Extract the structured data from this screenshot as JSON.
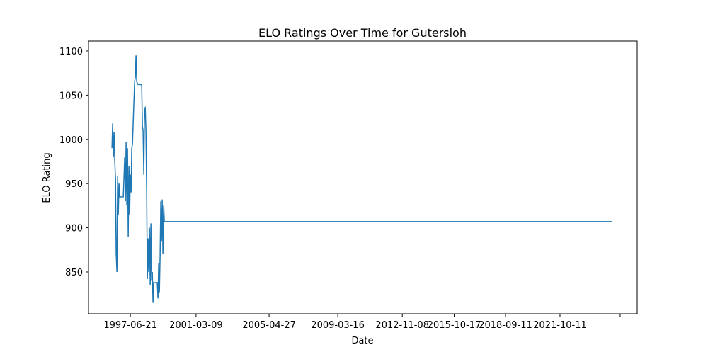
{
  "chart_data": {
    "type": "line",
    "title": "ELO Ratings Over Time for Gutersloh",
    "x_label": "Date",
    "y_label": "ELO Rating",
    "color": "#1f77b4",
    "x": [
      "1996-06-06",
      "1996-06-20",
      "1996-07-05",
      "1996-07-20",
      "1996-08-03",
      "1996-08-18",
      "1996-09-01",
      "1996-09-16",
      "1996-10-01",
      "1996-10-15",
      "1996-10-30",
      "1996-11-14",
      "1996-11-28",
      "1997-01-26",
      "1997-02-24",
      "1997-03-11",
      "1997-03-25",
      "1997-04-09",
      "1997-04-23",
      "1997-05-08",
      "1997-05-23",
      "1997-06-06",
      "1997-06-21",
      "1997-07-06",
      "1997-07-20",
      "1997-08-04",
      "1997-08-19",
      "1997-09-17",
      "1997-10-01",
      "1997-10-16",
      "1997-10-31",
      "1997-11-29",
      "1998-02-10",
      "1998-02-25",
      "1998-03-11",
      "1998-03-26",
      "1998-04-10",
      "1998-04-24",
      "1998-05-09",
      "1998-05-24",
      "1998-06-07",
      "1998-06-22",
      "1998-07-06",
      "1998-07-21",
      "1998-08-05",
      "1998-08-19",
      "1998-09-03",
      "1998-09-18",
      "1998-10-02",
      "1998-10-17",
      "1998-12-29",
      "1999-01-13",
      "1999-01-27",
      "1999-02-11",
      "1999-02-26",
      "1999-03-12",
      "1999-03-27",
      "1999-04-10",
      "1999-04-25",
      "1999-05-10",
      "1999-05-24",
      "2024-09-28"
    ],
    "values": [
      990,
      1018,
      980,
      1008,
      975,
      955,
      870,
      850,
      958,
      915,
      950,
      935,
      935,
      935,
      980,
      930,
      997,
      925,
      990,
      890,
      970,
      915,
      960,
      940,
      990,
      995,
      1020,
      1065,
      1070,
      1095,
      1065,
      1062,
      1062,
      1015,
      1010,
      960,
      1035,
      1036,
      1010,
      940,
      842,
      888,
      850,
      900,
      835,
      905,
      840,
      850,
      815,
      838,
      838,
      820,
      860,
      827,
      870,
      930,
      885,
      932,
      870,
      925,
      907,
      907
    ],
    "xlim": [
      "1995-02-07",
      "2026-02-22"
    ],
    "xticks": [
      "1997-06-21",
      "2001-03-09",
      "2005-04-27",
      "2009-03-16",
      "2012-11-08",
      "2015-10-17",
      "2018-09-11",
      "2021-10-11",
      {
        "value": "2025-03-07",
        "label": null
      }
    ],
    "ylim": [
      802.7,
      1111.2
    ],
    "yticks": [
      850,
      900,
      950,
      1000,
      1050,
      1100
    ]
  }
}
